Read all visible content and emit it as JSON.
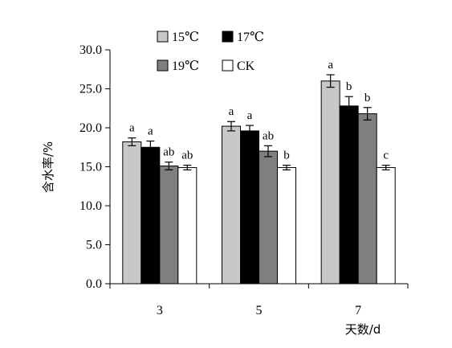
{
  "chart_data": {
    "type": "bar",
    "categories": [
      "3",
      "5",
      "7"
    ],
    "xlabel": "天数/d",
    "ylabel": "含水率/%",
    "ylim": [
      0,
      30
    ],
    "yticks": [
      "0.0",
      "5.0",
      "10.0",
      "15.0",
      "20.0",
      "25.0",
      "30.0"
    ],
    "grid": false,
    "legend_position": "top-center",
    "series": [
      {
        "name": "15℃",
        "color": "#c8c8c8",
        "values": [
          18.2,
          20.2,
          26.0
        ],
        "errors": [
          0.5,
          0.6,
          0.8
        ],
        "labels": [
          "a",
          "a",
          "a"
        ]
      },
      {
        "name": "17℃",
        "color": "#000000",
        "values": [
          17.5,
          19.6,
          22.8
        ],
        "errors": [
          0.8,
          0.7,
          1.2
        ],
        "labels": [
          "a",
          "a",
          "b"
        ]
      },
      {
        "name": "19℃",
        "color": "#7f7f7f",
        "values": [
          15.1,
          17.0,
          21.8
        ],
        "errors": [
          0.5,
          0.7,
          0.8
        ],
        "labels": [
          "ab",
          "ab",
          "b"
        ]
      },
      {
        "name": "CK",
        "color": "#ffffff",
        "values": [
          14.9,
          14.9,
          14.9
        ],
        "errors": [
          0.3,
          0.3,
          0.3
        ],
        "labels": [
          "ab",
          "b",
          "c"
        ]
      }
    ]
  }
}
